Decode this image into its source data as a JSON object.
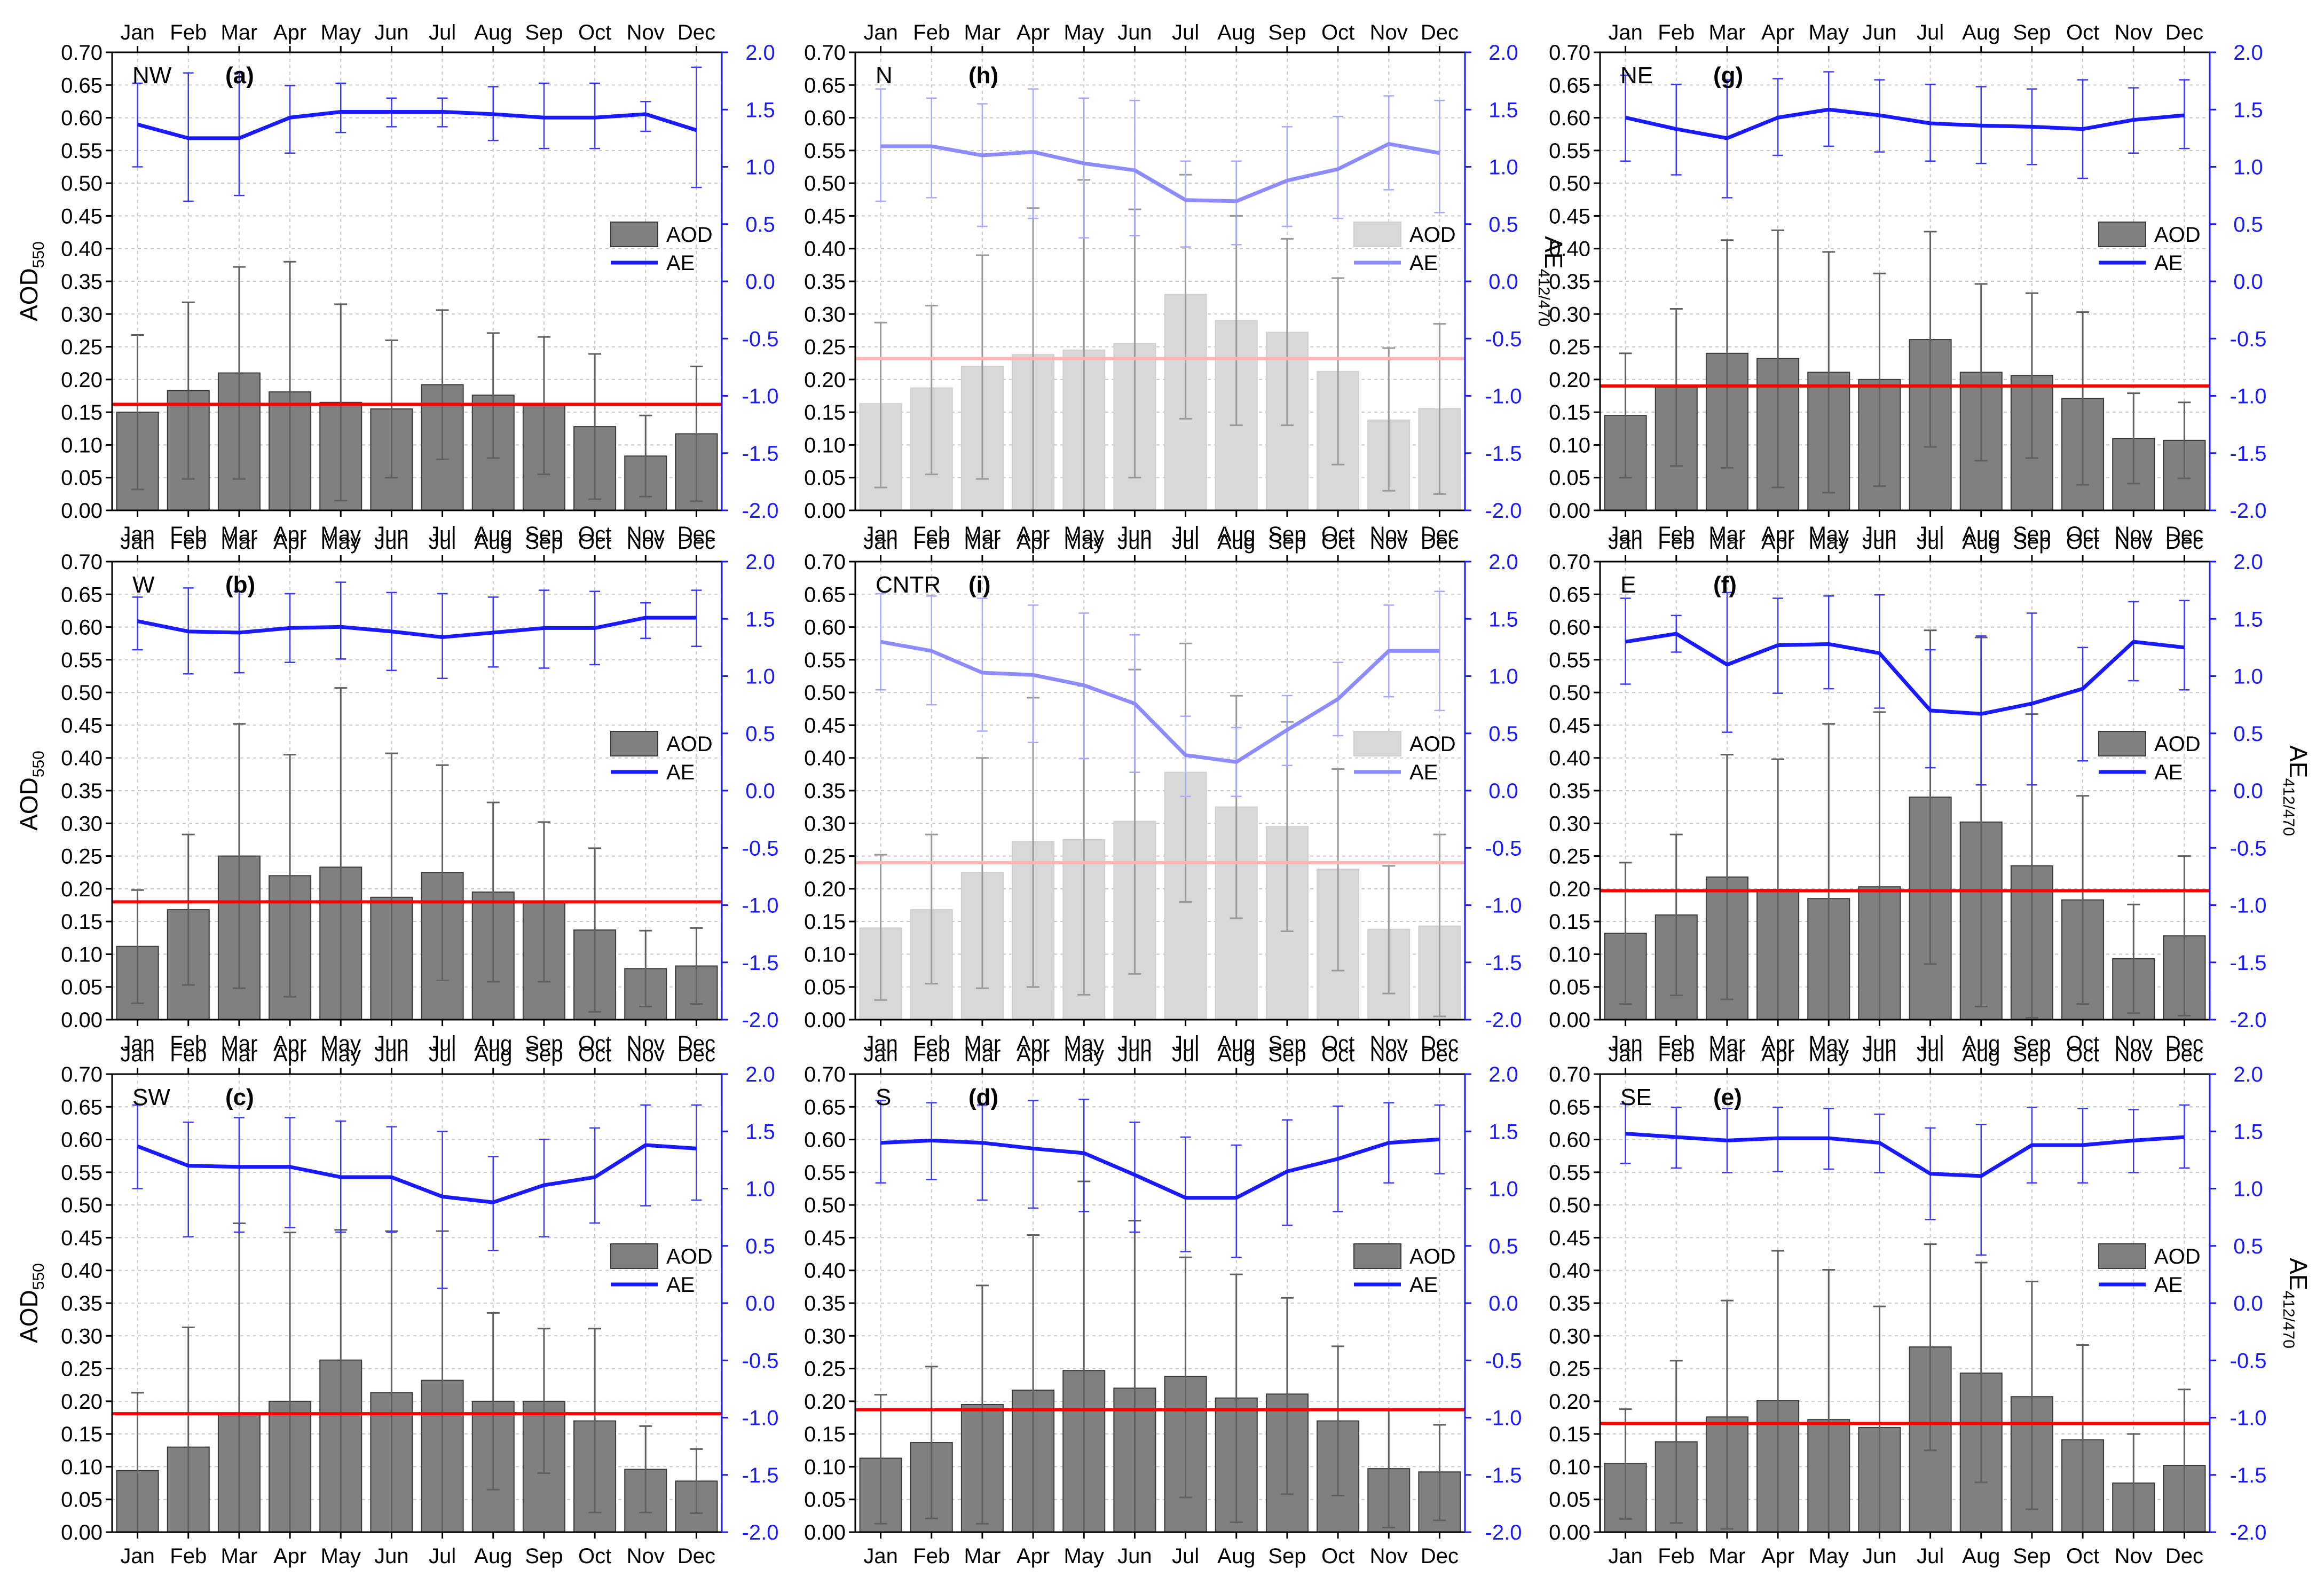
{
  "months": [
    "Jan",
    "Feb",
    "Mar",
    "Apr",
    "May",
    "Jun",
    "Jul",
    "Aug",
    "Sep",
    "Oct",
    "Nov",
    "Dec"
  ],
  "left_ticks": [
    "0.00",
    "0.05",
    "0.10",
    "0.15",
    "0.20",
    "0.25",
    "0.30",
    "0.35",
    "0.40",
    "0.45",
    "0.50",
    "0.55",
    "0.60",
    "0.65",
    "0.70"
  ],
  "right_ticks": [
    "-2.0",
    "-1.5",
    "-1.0",
    "-0.5",
    "0.0",
    "0.5",
    "1.0",
    "1.5",
    "2.0"
  ],
  "colors": {
    "bar_dark": "#808080",
    "bar_light": "#d8d8d8",
    "line_dark": "#1a1aff",
    "line_light": "#8c8cff",
    "mean_dark": "#ff0000",
    "mean_light": "#ffb3b3",
    "axis_right": "#1a1aff",
    "grid": "#c8c8c8"
  },
  "chart_data": [
    {
      "id": "a",
      "region": "NW",
      "label": "(a)",
      "type": "bar+line",
      "style": "dark",
      "legend": [
        "AOD",
        "AE"
      ],
      "ylabel_left": "AOD",
      "ylabel_left_sub": "550",
      "ylabel_right": "",
      "ylabel_right_sub": "",
      "ylim_left": [
        0,
        0.7
      ],
      "ylim_right": [
        -2,
        2
      ],
      "mean": 0.162,
      "aod": [
        0.15,
        0.183,
        0.21,
        0.181,
        0.165,
        0.155,
        0.192,
        0.176,
        0.16,
        0.128,
        0.083,
        0.117
      ],
      "aod_err_hi": [
        0.268,
        0.318,
        0.372,
        0.38,
        0.315,
        0.26,
        0.306,
        0.271,
        0.265,
        0.239,
        0.145,
        0.22
      ],
      "aod_err_lo": [
        0.032,
        0.048,
        0.048,
        0.0,
        0.015,
        0.05,
        0.078,
        0.08,
        0.055,
        0.017,
        0.021,
        0.014
      ],
      "ae": [
        1.37,
        1.25,
        1.25,
        1.43,
        1.48,
        1.48,
        1.48,
        1.46,
        1.43,
        1.43,
        1.46,
        1.32
      ],
      "ae_err_hi": [
        1.73,
        1.82,
        1.82,
        1.71,
        1.73,
        1.6,
        1.6,
        1.7,
        1.73,
        1.73,
        1.57,
        1.87
      ],
      "ae_err_lo": [
        1.0,
        0.7,
        0.75,
        1.12,
        1.3,
        1.35,
        1.35,
        1.23,
        1.16,
        1.16,
        1.31,
        0.82
      ]
    },
    {
      "id": "h",
      "region": "N",
      "label": "(h)",
      "type": "bar+line",
      "style": "light",
      "legend": [
        "AOD",
        "AE"
      ],
      "ylabel_left": "",
      "ylabel_left_sub": "",
      "ylabel_right": "AE",
      "ylabel_right_sub": "412/470",
      "ylim_left": [
        0,
        0.7
      ],
      "ylim_right": [
        -2,
        2
      ],
      "mean": 0.232,
      "aod": [
        0.163,
        0.187,
        0.22,
        0.238,
        0.245,
        0.255,
        0.33,
        0.29,
        0.272,
        0.212,
        0.138,
        0.155
      ],
      "aod_err_hi": [
        0.287,
        0.313,
        0.39,
        0.462,
        0.505,
        0.46,
        0.513,
        0.45,
        0.415,
        0.355,
        0.248,
        0.285
      ],
      "aod_err_lo": [
        0.035,
        0.055,
        0.048,
        0.0,
        0.0,
        0.05,
        0.14,
        0.13,
        0.13,
        0.07,
        0.03,
        0.025
      ],
      "ae": [
        1.18,
        1.18,
        1.1,
        1.13,
        1.03,
        0.97,
        0.71,
        0.7,
        0.88,
        0.98,
        1.2,
        1.12
      ],
      "ae_err_hi": [
        1.68,
        1.6,
        1.55,
        1.68,
        1.6,
        1.58,
        1.05,
        1.05,
        1.35,
        1.44,
        1.62,
        1.58
      ],
      "ae_err_lo": [
        0.7,
        0.73,
        0.48,
        0.55,
        0.38,
        0.4,
        0.3,
        0.32,
        0.48,
        0.55,
        0.8,
        0.6
      ]
    },
    {
      "id": "g",
      "region": "NE",
      "label": "(g)",
      "type": "bar+line",
      "style": "dark",
      "legend": [
        "AOD",
        "AE"
      ],
      "ylabel_left": "",
      "ylabel_left_sub": "",
      "ylabel_right": "",
      "ylabel_right_sub": "",
      "ylim_left": [
        0,
        0.7
      ],
      "ylim_right": [
        -2,
        2
      ],
      "mean": 0.19,
      "aod": [
        0.145,
        0.188,
        0.24,
        0.232,
        0.211,
        0.2,
        0.261,
        0.211,
        0.206,
        0.171,
        0.11,
        0.107
      ],
      "aod_err_hi": [
        0.24,
        0.308,
        0.413,
        0.428,
        0.395,
        0.362,
        0.426,
        0.346,
        0.332,
        0.303,
        0.179,
        0.165
      ],
      "aod_err_lo": [
        0.05,
        0.068,
        0.065,
        0.035,
        0.027,
        0.037,
        0.097,
        0.076,
        0.08,
        0.039,
        0.041,
        0.049
      ],
      "ae": [
        1.43,
        1.33,
        1.25,
        1.43,
        1.5,
        1.45,
        1.38,
        1.36,
        1.35,
        1.33,
        1.41,
        1.45
      ],
      "ae_err_hi": [
        1.8,
        1.72,
        1.76,
        1.77,
        1.83,
        1.76,
        1.72,
        1.7,
        1.68,
        1.76,
        1.69,
        1.76
      ],
      "ae_err_lo": [
        1.05,
        0.93,
        0.73,
        1.1,
        1.18,
        1.13,
        1.05,
        1.03,
        1.02,
        0.9,
        1.12,
        1.16
      ]
    },
    {
      "id": "b",
      "region": "W",
      "label": "(b)",
      "type": "bar+line",
      "style": "dark",
      "legend": [
        "AOD",
        "AE"
      ],
      "ylabel_left": "AOD",
      "ylabel_left_sub": "550",
      "ylabel_right": "",
      "ylabel_right_sub": "",
      "ylim_left": [
        0,
        0.7
      ],
      "ylim_right": [
        -2,
        2
      ],
      "mean": 0.18,
      "aod": [
        0.112,
        0.168,
        0.25,
        0.22,
        0.233,
        0.187,
        0.225,
        0.195,
        0.18,
        0.137,
        0.078,
        0.082
      ],
      "aod_err_hi": [
        0.198,
        0.283,
        0.452,
        0.405,
        0.507,
        0.407,
        0.389,
        0.332,
        0.302,
        0.262,
        0.136,
        0.14
      ],
      "aod_err_lo": [
        0.025,
        0.053,
        0.048,
        0.035,
        0.0,
        0.0,
        0.06,
        0.058,
        0.058,
        0.012,
        0.02,
        0.024
      ],
      "ae": [
        1.48,
        1.39,
        1.38,
        1.42,
        1.43,
        1.39,
        1.34,
        1.38,
        1.42,
        1.42,
        1.51,
        1.51
      ],
      "ae_err_hi": [
        1.69,
        1.77,
        1.74,
        1.72,
        1.82,
        1.73,
        1.72,
        1.69,
        1.75,
        1.74,
        1.64,
        1.75
      ],
      "ae_err_lo": [
        1.23,
        1.02,
        1.03,
        1.12,
        1.15,
        1.05,
        0.98,
        1.08,
        1.07,
        1.1,
        1.33,
        1.26
      ]
    },
    {
      "id": "i",
      "region": "CNTR",
      "label": "(i)",
      "type": "bar+line",
      "style": "light",
      "legend": [
        "AOD",
        "AE"
      ],
      "ylabel_left": "",
      "ylabel_left_sub": "",
      "ylabel_right": "",
      "ylabel_right_sub": "",
      "ylim_left": [
        0,
        0.7
      ],
      "ylim_right": [
        -2,
        2
      ],
      "mean": 0.24,
      "aod": [
        0.14,
        0.168,
        0.225,
        0.272,
        0.275,
        0.303,
        0.378,
        0.325,
        0.295,
        0.23,
        0.138,
        0.143
      ],
      "aod_err_hi": [
        0.252,
        0.283,
        0.4,
        0.492,
        0.51,
        0.535,
        0.575,
        0.495,
        0.455,
        0.383,
        0.235,
        0.283
      ],
      "aod_err_lo": [
        0.03,
        0.055,
        0.048,
        0.05,
        0.038,
        0.07,
        0.18,
        0.155,
        0.135,
        0.075,
        0.04,
        0.005
      ],
      "ae": [
        1.3,
        1.22,
        1.03,
        1.01,
        0.92,
        0.76,
        0.31,
        0.25,
        0.53,
        0.8,
        1.22,
        1.22
      ],
      "ae_err_hi": [
        1.72,
        1.7,
        1.68,
        1.62,
        1.55,
        1.36,
        0.65,
        0.55,
        0.83,
        1.12,
        1.62,
        1.74
      ],
      "ae_err_lo": [
        0.88,
        0.75,
        0.52,
        0.42,
        0.28,
        0.16,
        -0.05,
        -0.05,
        0.22,
        0.48,
        0.82,
        0.7
      ]
    },
    {
      "id": "f",
      "region": "E",
      "label": "(f)",
      "type": "bar+line",
      "style": "dark",
      "legend": [
        "AOD",
        "AE"
      ],
      "ylabel_left": "",
      "ylabel_left_sub": "",
      "ylabel_right": "AE",
      "ylabel_right_sub": "412/470",
      "ylim_left": [
        0,
        0.7
      ],
      "ylim_right": [
        -2,
        2
      ],
      "mean": 0.197,
      "aod": [
        0.132,
        0.16,
        0.218,
        0.199,
        0.185,
        0.203,
        0.34,
        0.302,
        0.235,
        0.183,
        0.093,
        0.128
      ],
      "aod_err_hi": [
        0.24,
        0.283,
        0.405,
        0.398,
        0.452,
        0.47,
        0.595,
        0.584,
        0.467,
        0.342,
        0.176,
        0.25
      ],
      "aod_err_lo": [
        0.024,
        0.037,
        0.031,
        0.0,
        0.0,
        0.0,
        0.085,
        0.02,
        0.003,
        0.024,
        0.01,
        0.006
      ],
      "ae": [
        1.3,
        1.37,
        1.1,
        1.27,
        1.28,
        1.2,
        0.7,
        0.67,
        0.76,
        0.89,
        1.3,
        1.25
      ],
      "ae_err_hi": [
        1.68,
        1.53,
        1.73,
        1.68,
        1.7,
        1.71,
        1.23,
        1.35,
        1.55,
        1.25,
        1.65,
        1.66
      ],
      "ae_err_lo": [
        0.93,
        1.21,
        0.51,
        0.85,
        0.89,
        0.72,
        0.2,
        0.05,
        0.05,
        0.26,
        0.96,
        0.88
      ]
    },
    {
      "id": "c",
      "region": "SW",
      "label": "(c)",
      "type": "bar+line",
      "style": "dark",
      "legend": [
        "AOD",
        "AE"
      ],
      "ylabel_left": "AOD",
      "ylabel_left_sub": "550",
      "ylabel_right": "",
      "ylabel_right_sub": "",
      "ylim_left": [
        0,
        0.7
      ],
      "ylim_right": [
        -2,
        2
      ],
      "mean": 0.181,
      "aod": [
        0.094,
        0.13,
        0.181,
        0.2,
        0.263,
        0.213,
        0.232,
        0.2,
        0.2,
        0.17,
        0.096,
        0.078
      ],
      "aod_err_hi": [
        0.213,
        0.313,
        0.472,
        0.458,
        0.462,
        0.46,
        0.46,
        0.335,
        0.311,
        0.311,
        0.162,
        0.127
      ],
      "aod_err_lo": [
        0.0,
        0.0,
        0.0,
        0.0,
        0.0,
        0.0,
        0.0,
        0.065,
        0.09,
        0.03,
        0.03,
        0.029
      ],
      "ae": [
        1.37,
        1.2,
        1.19,
        1.19,
        1.1,
        1.1,
        0.93,
        0.88,
        1.03,
        1.1,
        1.38,
        1.35
      ],
      "ae_err_hi": [
        1.73,
        1.58,
        1.62,
        1.62,
        1.59,
        1.54,
        1.5,
        1.28,
        1.43,
        1.53,
        1.73,
        1.73
      ],
      "ae_err_lo": [
        1.0,
        0.58,
        0.62,
        0.66,
        0.62,
        0.62,
        0.13,
        0.46,
        0.58,
        0.7,
        0.85,
        0.9
      ]
    },
    {
      "id": "d",
      "region": "S",
      "label": "(d)",
      "type": "bar+line",
      "style": "dark",
      "legend": [
        "AOD",
        "AE"
      ],
      "ylabel_left": "",
      "ylabel_left_sub": "",
      "ylabel_right": "",
      "ylabel_right_sub": "",
      "ylim_left": [
        0,
        0.7
      ],
      "ylim_right": [
        -2,
        2
      ],
      "mean": 0.187,
      "aod": [
        0.113,
        0.137,
        0.195,
        0.217,
        0.247,
        0.22,
        0.238,
        0.205,
        0.211,
        0.17,
        0.097,
        0.092
      ],
      "aod_err_hi": [
        0.21,
        0.253,
        0.377,
        0.454,
        0.536,
        0.476,
        0.42,
        0.394,
        0.358,
        0.284,
        0.188,
        0.164
      ],
      "aod_err_lo": [
        0.013,
        0.021,
        0.013,
        0.0,
        0.0,
        0.0,
        0.053,
        0.015,
        0.058,
        0.056,
        0.007,
        0.018
      ],
      "ae": [
        1.4,
        1.42,
        1.4,
        1.35,
        1.31,
        1.12,
        0.92,
        0.92,
        1.15,
        1.26,
        1.4,
        1.43
      ],
      "ae_err_hi": [
        1.77,
        1.75,
        1.73,
        1.77,
        1.78,
        1.58,
        1.45,
        1.38,
        1.6,
        1.72,
        1.75,
        1.73
      ],
      "ae_err_lo": [
        1.05,
        1.08,
        0.9,
        0.83,
        0.8,
        0.62,
        0.45,
        0.4,
        0.68,
        0.8,
        1.05,
        1.13
      ]
    },
    {
      "id": "e",
      "region": "SE",
      "label": "(e)",
      "type": "bar+line",
      "style": "dark",
      "legend": [
        "AOD",
        "AE"
      ],
      "ylabel_left": "",
      "ylabel_left_sub": "",
      "ylabel_right": "AE",
      "ylabel_right_sub": "412/470",
      "ylim_left": [
        0,
        0.7
      ],
      "ylim_right": [
        -2,
        2
      ],
      "mean": 0.166,
      "aod": [
        0.105,
        0.138,
        0.176,
        0.201,
        0.172,
        0.16,
        0.283,
        0.243,
        0.207,
        0.141,
        0.075,
        0.102
      ],
      "aod_err_hi": [
        0.188,
        0.262,
        0.354,
        0.43,
        0.401,
        0.345,
        0.44,
        0.412,
        0.383,
        0.286,
        0.15,
        0.218
      ],
      "aod_err_lo": [
        0.02,
        0.014,
        0.005,
        0.0,
        0.0,
        0.0,
        0.125,
        0.076,
        0.035,
        0.0,
        0.0,
        0.0
      ],
      "ae": [
        1.48,
        1.45,
        1.42,
        1.44,
        1.44,
        1.4,
        1.13,
        1.11,
        1.38,
        1.38,
        1.42,
        1.45
      ],
      "ae_err_hi": [
        1.74,
        1.71,
        1.7,
        1.71,
        1.7,
        1.65,
        1.53,
        1.56,
        1.71,
        1.7,
        1.69,
        1.73
      ],
      "ae_err_lo": [
        1.22,
        1.18,
        1.14,
        1.15,
        1.17,
        1.14,
        0.73,
        0.42,
        1.05,
        1.05,
        1.14,
        1.18
      ]
    }
  ]
}
